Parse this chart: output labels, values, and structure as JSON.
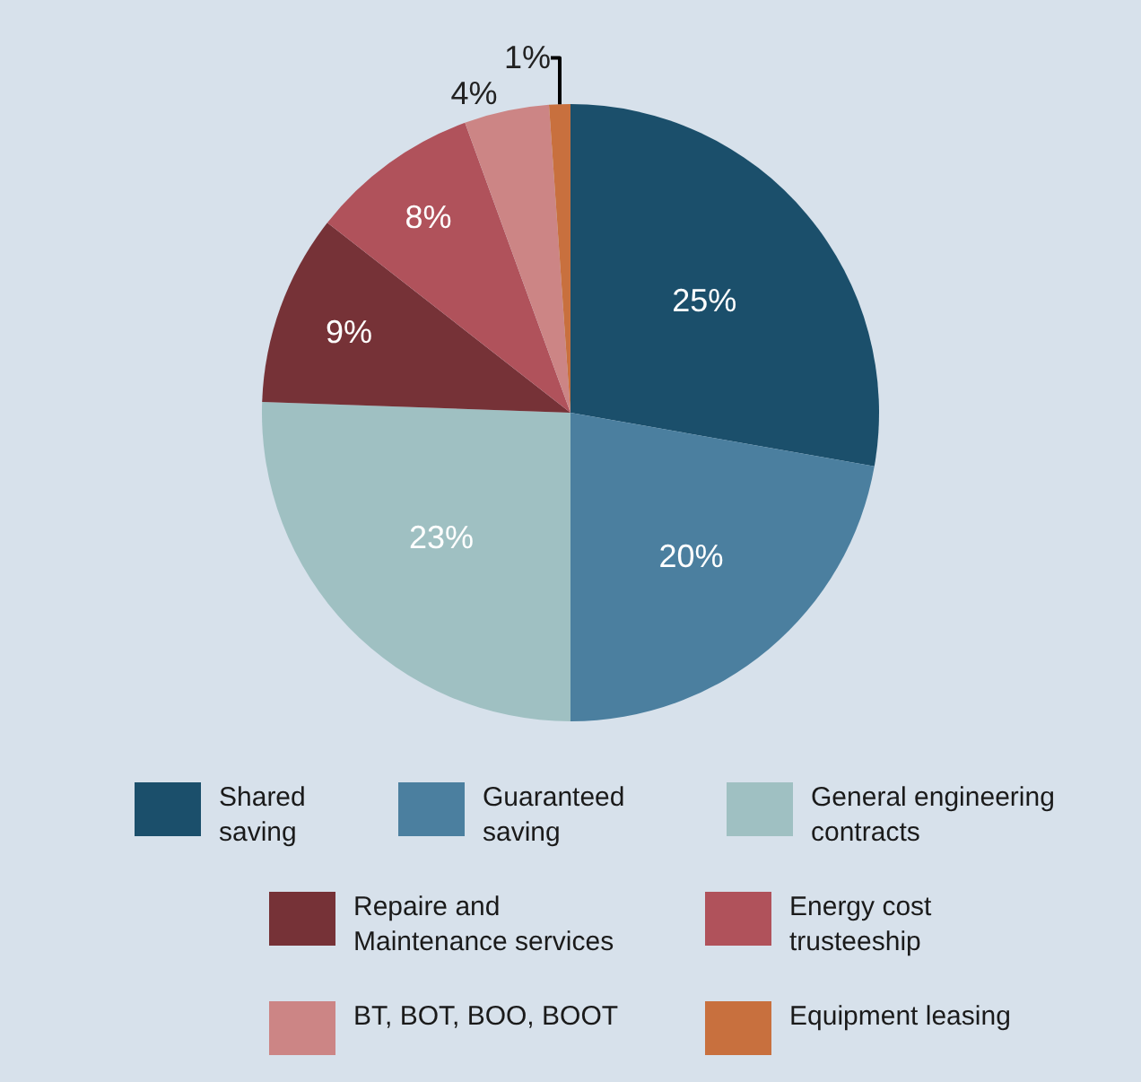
{
  "chart_data": {
    "type": "pie",
    "categories": [
      "Shared saving",
      "Guaranteed saving",
      "General engineering contracts",
      "Repaire and Maintenance services",
      "Energy cost trusteeship",
      "BT, BOT, BOO, BOOT",
      "Equipment leasing"
    ],
    "values": [
      25,
      20,
      23,
      9,
      8,
      4,
      1
    ],
    "colors": [
      "#1b4f6b",
      "#4b7f9f",
      "#9fc0c2",
      "#763237",
      "#b0525b",
      "#cc8585",
      "#c8703e"
    ],
    "value_labels": [
      "25%",
      "20%",
      "23%",
      "9%",
      "8%",
      "4%",
      "1%"
    ],
    "legend": "bottom"
  }
}
